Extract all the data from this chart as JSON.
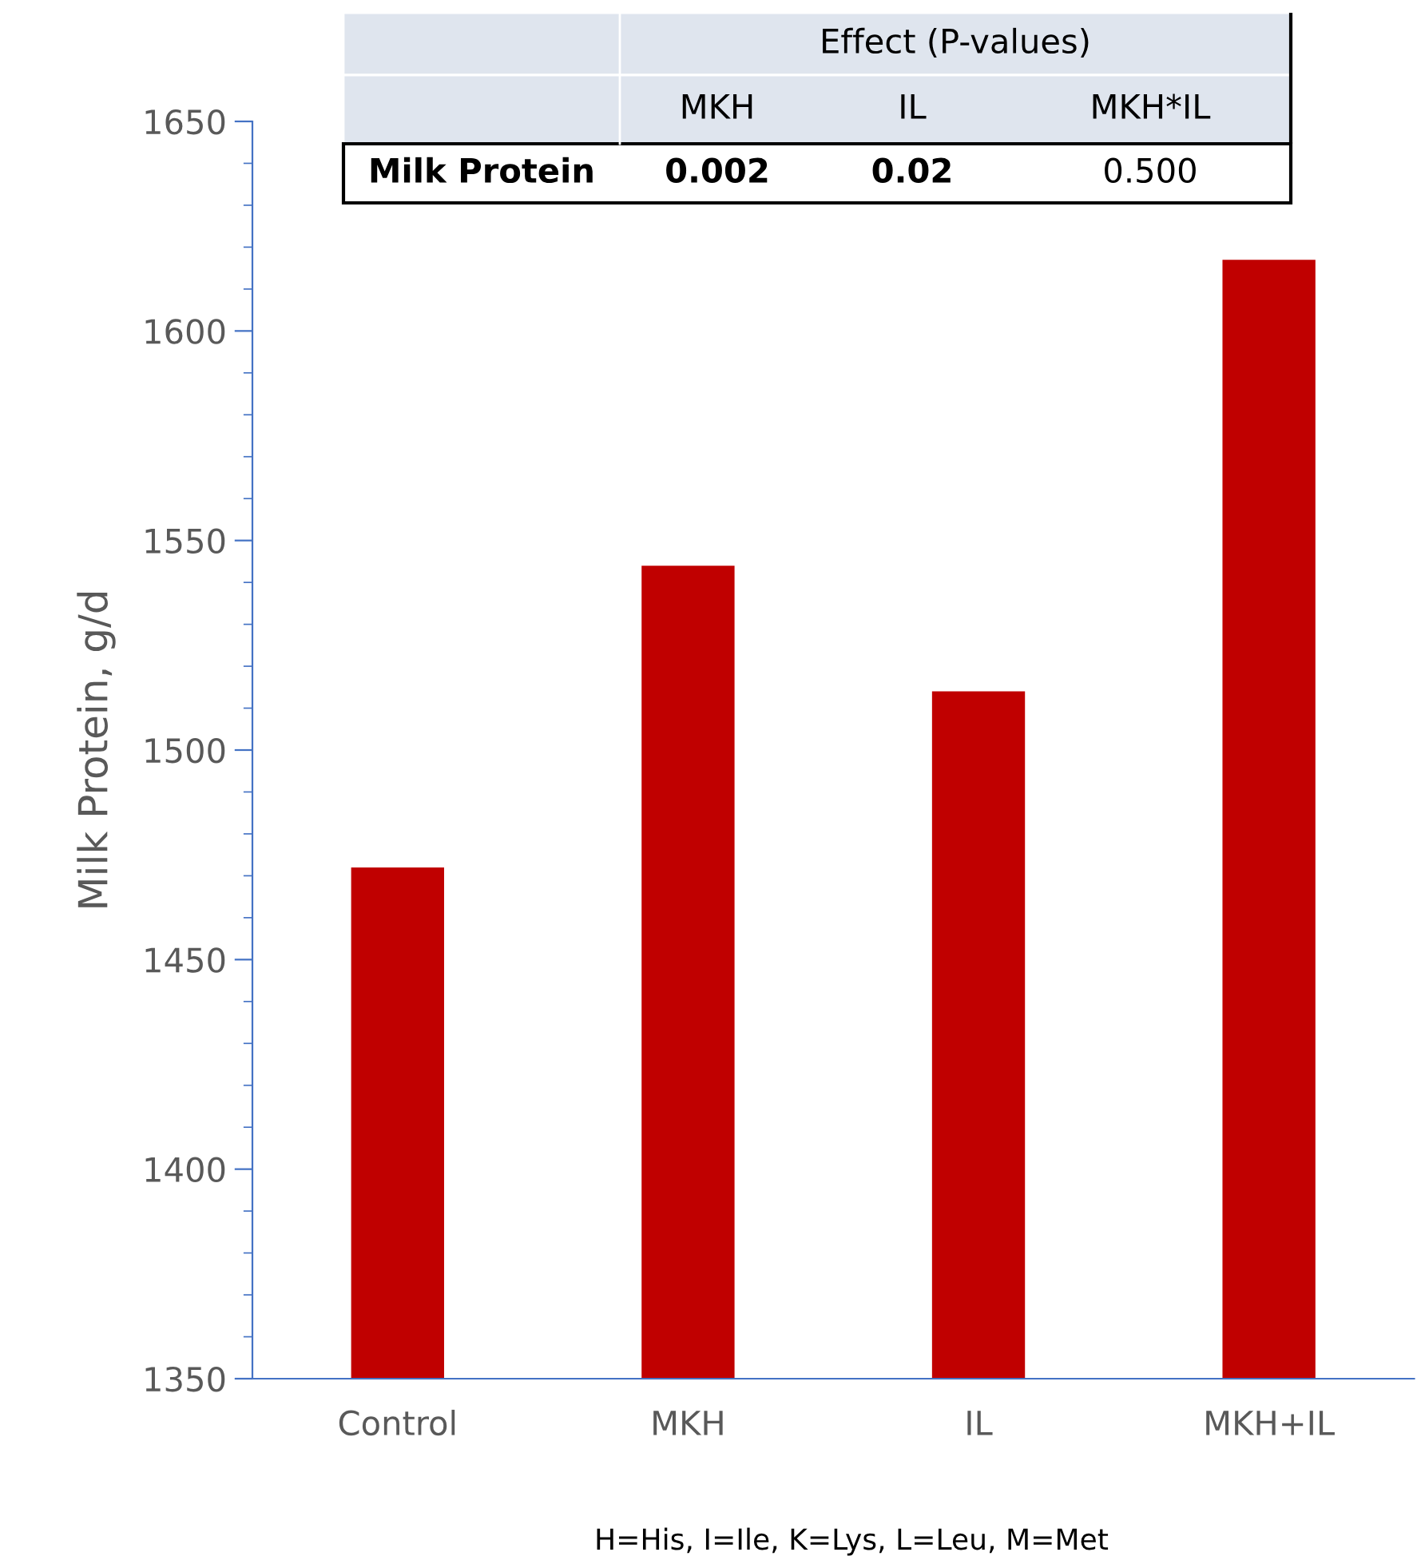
{
  "chart_data": {
    "type": "bar",
    "ylabel": "Milk Protein, g/d",
    "categories": [
      "Control",
      "MKH",
      "IL",
      "MKH+IL"
    ],
    "values": [
      1472,
      1544,
      1514,
      1617
    ],
    "color": "#c00000",
    "ylim": [
      1350,
      1650
    ],
    "yticks": [
      1350,
      1400,
      1450,
      1500,
      1550,
      1600,
      1650
    ],
    "grid": false,
    "legend": false,
    "annotations": [
      "H=His, I=Ile, K=Lys, L=Leu, M=Met",
      "Effect (P-values)",
      "MKH",
      "IL",
      "MKH*IL",
      "Milk Protein",
      "0.002",
      "0.02",
      "0.500"
    ]
  }
}
